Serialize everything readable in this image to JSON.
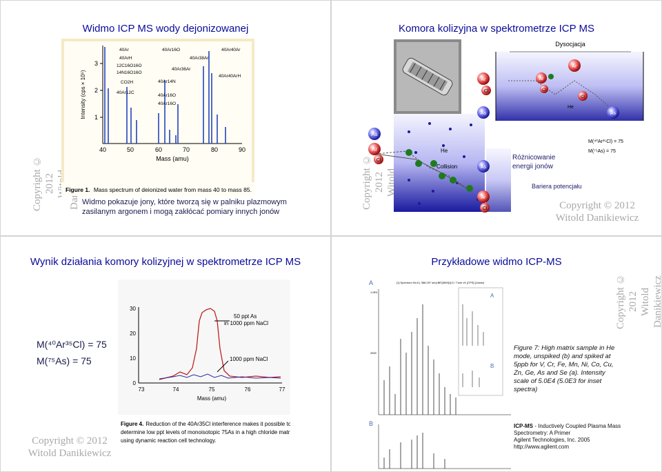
{
  "slide1": {
    "title": "Widmo ICP MS wody dejonizowanej",
    "caption": "Widmo pokazuje jony, które tworzą się w palniku plazmowym zasilanym argonem i mogą zakłócać pomiary innych jonów",
    "copyright_line1": "Copyright © 2012",
    "copyright_line2": "Witold Danikiewicz",
    "figure_caption_label": "Figure 1.",
    "figure_caption_text": "Mass spectrum of deionized water from mass 40 to mass 85.",
    "y_axis_label": "Intensity (cps × 10⁵)",
    "x_axis_label": "Mass (amu)",
    "y_ticks": [
      "1",
      "2",
      "3"
    ],
    "x_ticks": [
      "40",
      "50",
      "60",
      "70",
      "80",
      "90"
    ],
    "peak_labels": [
      "40Ar",
      "40ArH",
      "12C16O16O",
      "14N16O16O",
      "CO2H",
      "40Ar12C",
      "40Ar16O",
      "40Ar14N",
      "40Ar16O",
      "40Ar16O",
      "40Ar36Ar",
      "40Ar38Ar",
      "40Ar40Ar",
      "40Ar40ArH"
    ]
  },
  "slide2": {
    "title": "Komora kolizyjna w spektrometrze ICP MS",
    "dissociation_label": "Dysocjacja",
    "he_label": "He",
    "collision_label": "Collision",
    "energy_diff_line1": "Różnicowanie",
    "energy_diff_line2": "energii jonów",
    "barrier_label": "Bariera potencjału",
    "mass_eq1": "M(⁴⁰Ar³⁵Cl) = 75",
    "mass_eq2": "M(⁷⁵As) = 75",
    "ion_ar": "Ar",
    "ion_cl": "Cl",
    "ion_as": "As",
    "copyright_line1": "Copyright © 2012",
    "copyright_line2": "Witold Danikiewicz"
  },
  "slide3": {
    "title": "Wynik działania komory kolizyjnej w spektrometrze ICP MS",
    "mass_eq1": "M(⁴⁰Ar³⁵Cl) = 75",
    "mass_eq2": "M(⁷⁵As) = 75",
    "series1_label_line1": "50 ppt As",
    "series1_label_line2": "in 1000 ppm NaCl",
    "series2_label": "1000 ppm NaCl",
    "x_axis_label": "Mass (amu)",
    "y_ticks": [
      "0",
      "10",
      "20",
      "30"
    ],
    "x_ticks": [
      "73",
      "74",
      "75",
      "76",
      "77"
    ],
    "figure_caption_label": "Figure 4.",
    "figure_caption_line1": "Reduction of the 40Ar35Cl interference makes it possible to",
    "figure_caption_line2": "determine low ppt levels of monoisotopic 75As in a high chloride matrix",
    "figure_caption_line3": "using dynamic reaction cell technology.",
    "copyright_line1": "Copyright © 2012",
    "copyright_line2": "Witold Danikiewicz"
  },
  "slide4": {
    "title": "Przykładowe widmo ICP-MS",
    "figure_text": "Figure 7: High matrix sample in He mode, unspiked (b) and spiked at 5ppb for V, Cr, Fe, Mn, Ni, Co, Cu, Zn, Ge, As and Se (a). Intensity scale of 5.0E4 (5.0E3 for inset spectra)",
    "ref_title": "ICP-MS",
    "ref_rest": " - Inductively Coupled Plasma Mass Spectrometry: A Primer",
    "ref_publisher": "Agilent Technologies, Inc. 2005",
    "ref_url": "http://www.agilent.com",
    "panel_a": "A",
    "panel_b": "B",
    "spectrum_header": "[1] Spectrum No.6   [ 388.297 sec]:BEQ569[1].D / Tune #1 [CPS] [Linear]",
    "y_tick_top": "1.0E4",
    "y_tick_mid": "2500",
    "copyright_line1": "Copyright © 2012",
    "copyright_line2": "Witold Danikiewicz"
  }
}
